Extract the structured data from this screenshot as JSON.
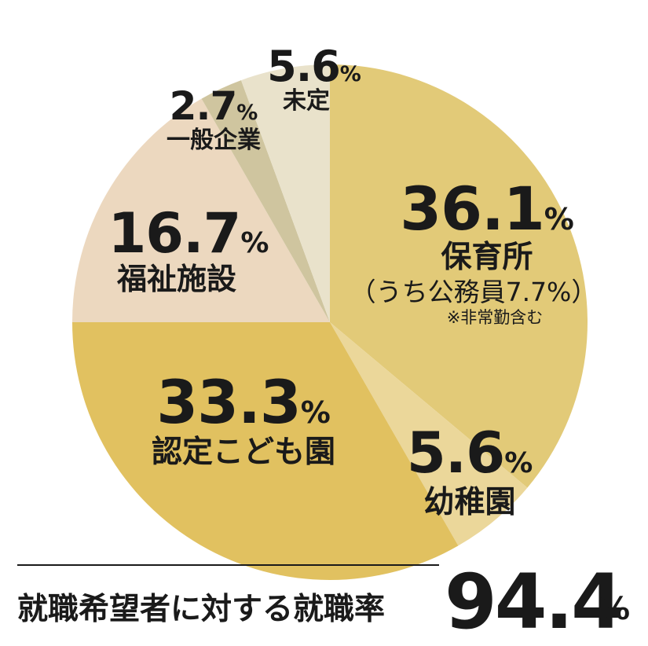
{
  "chart_data": {
    "type": "pie",
    "slices": [
      {
        "label": "保育所",
        "value": 36.1,
        "unit": "%",
        "color": "#e2ca78",
        "sub": "（うち公務員7.7%）",
        "note": "※非常勤含む"
      },
      {
        "label": "幼稚園",
        "value": 5.6,
        "unit": "%",
        "color": "#ebd79a"
      },
      {
        "label": "認定こども園",
        "value": 33.3,
        "unit": "%",
        "color": "#e1c160"
      },
      {
        "label": "福祉施設",
        "value": 16.7,
        "unit": "%",
        "color": "#ecd8bf"
      },
      {
        "label": "一般企業",
        "value": 2.7,
        "unit": "%",
        "color": "#cfc59f"
      },
      {
        "label": "未定",
        "value": 5.6,
        "unit": "%",
        "color": "#e9e2cb"
      }
    ]
  },
  "footer": {
    "label": "就職希望者に対する就職率",
    "value": "94.4",
    "unit": "%"
  }
}
